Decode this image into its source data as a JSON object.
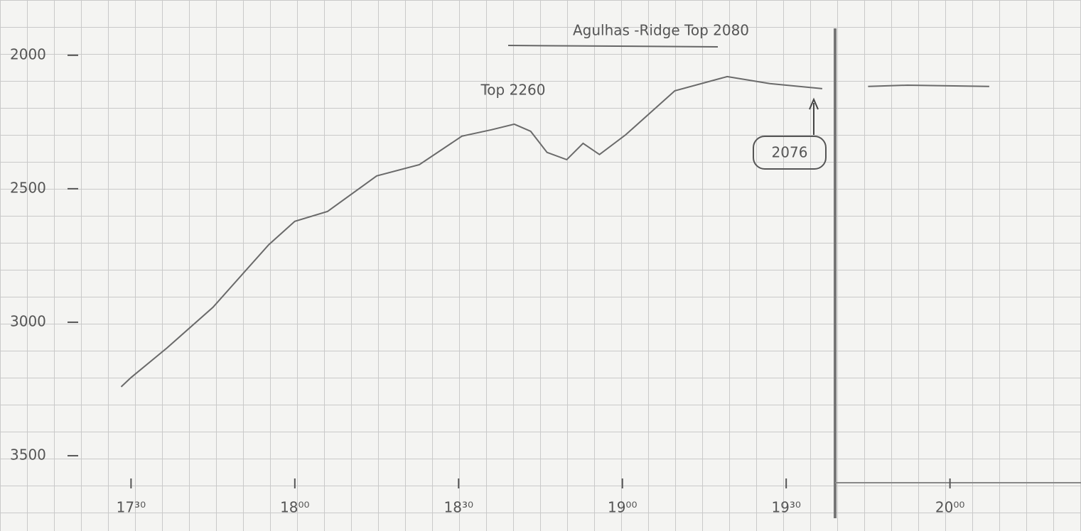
{
  "chart_data": {
    "type": "line",
    "title": "Agulhas -Ridge Top 2080",
    "annotations": [
      "Top 2260",
      "2076"
    ],
    "x": [
      17.47,
      17.5,
      17.61,
      17.75,
      17.92,
      18.0,
      18.1,
      18.25,
      18.38,
      18.51,
      18.6,
      18.67,
      18.72,
      18.77,
      18.83,
      18.88,
      18.93,
      19.01,
      19.16,
      19.32,
      19.45,
      19.61,
      19.68,
      19.75,
      19.87,
      20.12
    ],
    "series": [
      {
        "color": "#6a6a6a",
        "values": [
          3242,
          3207,
          3096,
          2944,
          2710,
          2622,
          2585,
          2452,
          2410,
          2303,
          2279,
          2258,
          2285,
          2364,
          2391,
          2330,
          2372,
          2298,
          2133,
          2080,
          2106,
          2125,
          null,
          2117,
          2112,
          2117
        ]
      }
    ],
    "xlim": [
      17.1,
      20.4
    ],
    "ylim": [
      3782,
      1793
    ],
    "xticks": [
      {
        "value": 17.5,
        "label": "17³⁰"
      },
      {
        "value": 18,
        "label": "18⁰⁰"
      },
      {
        "value": 18.5,
        "label": "18³⁰"
      },
      {
        "value": 19,
        "label": "19⁰⁰"
      },
      {
        "value": 19.5,
        "label": "19³⁰"
      },
      {
        "value": 20,
        "label": "20⁰⁰"
      }
    ],
    "yticks": [
      2000,
      2500,
      3000,
      3500
    ]
  }
}
